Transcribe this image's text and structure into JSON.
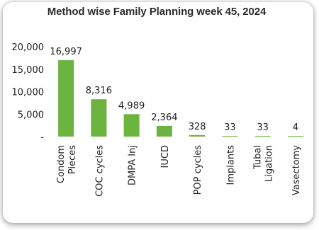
{
  "chart_data": {
    "type": "bar",
    "title": "Method wise Family  Planning week 45, 2024",
    "categories": [
      [
        "Condom",
        "Pieces"
      ],
      [
        "COC cycles"
      ],
      [
        "DMPA Inj"
      ],
      [
        "IUCD"
      ],
      [
        "POP cycles"
      ],
      [
        "Implants"
      ],
      [
        "Tubal",
        "Ligation"
      ],
      [
        "Vasectomy"
      ]
    ],
    "values": [
      16997,
      8316,
      4989,
      2364,
      328,
      33,
      33,
      4
    ],
    "data_labels": [
      "16,997",
      "8,316",
      "4,989",
      "2,364",
      "328",
      "33",
      "33",
      "4"
    ],
    "y_ticks": [
      {
        "value": 0,
        "label": "-"
      },
      {
        "value": 5000,
        "label": "5,000"
      },
      {
        "value": 10000,
        "label": "10,000"
      },
      {
        "value": 15000,
        "label": "15,000"
      },
      {
        "value": 20000,
        "label": "20,000"
      }
    ],
    "ylim": [
      0,
      20000
    ],
    "bar_color": "#6db33f",
    "grid": false,
    "legend": "none"
  }
}
